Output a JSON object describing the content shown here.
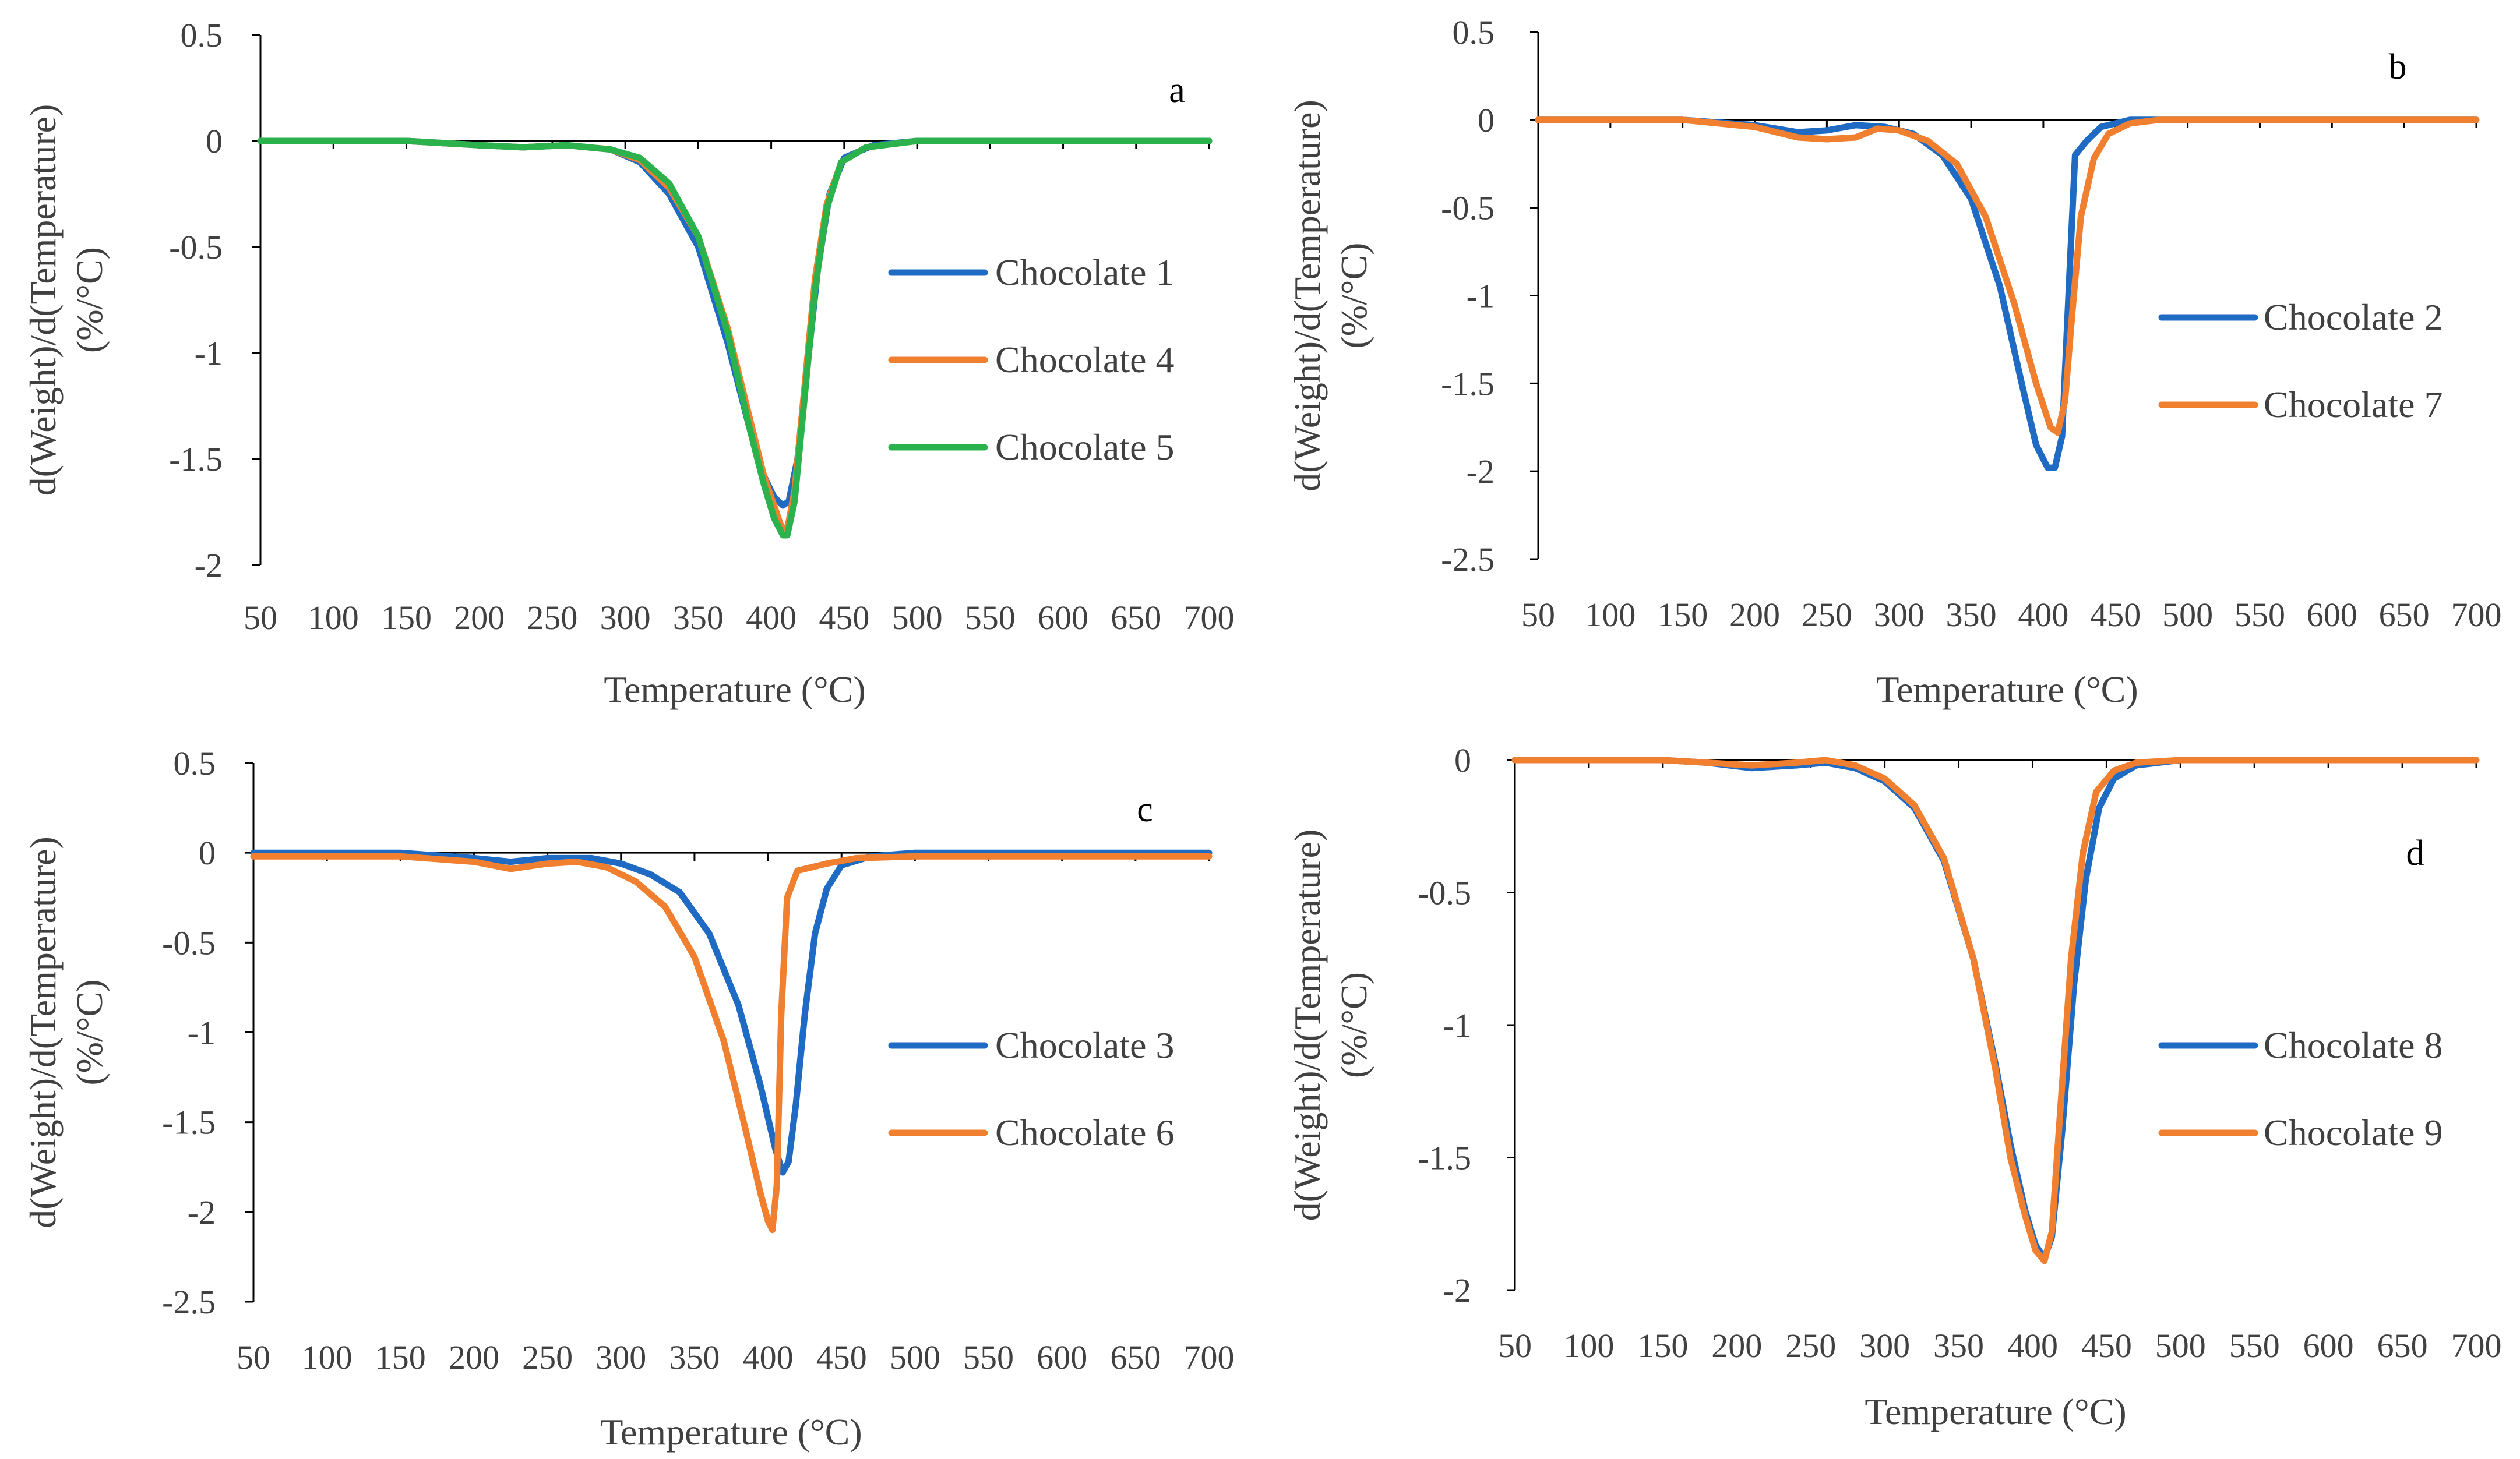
{
  "chart_data": [
    {
      "type": "line",
      "panel_label": "a",
      "xlabel": "Temperature (°C)",
      "ylabel_line1": "d(Weight)/d(Temperature)",
      "ylabel_line2": "(%/°C)",
      "xlim": [
        50,
        700
      ],
      "ylim": [
        -2,
        0.5
      ],
      "xticks": [
        50,
        100,
        150,
        200,
        250,
        300,
        350,
        400,
        450,
        500,
        550,
        600,
        650,
        700
      ],
      "yticks": [
        0.5,
        0,
        -0.5,
        -1,
        -1.5,
        -2
      ],
      "legend_position": "right",
      "series": [
        {
          "name": "Chocolate 1",
          "color": "#1F6BC4",
          "points": [
            [
              50,
              0
            ],
            [
              150,
              0
            ],
            [
              200,
              -0.02
            ],
            [
              230,
              -0.03
            ],
            [
              260,
              -0.02
            ],
            [
              290,
              -0.04
            ],
            [
              310,
              -0.1
            ],
            [
              330,
              -0.25
            ],
            [
              350,
              -0.5
            ],
            [
              370,
              -0.95
            ],
            [
              385,
              -1.35
            ],
            [
              395,
              -1.58
            ],
            [
              402,
              -1.68
            ],
            [
              408,
              -1.72
            ],
            [
              412,
              -1.7
            ],
            [
              418,
              -1.5
            ],
            [
              425,
              -1.05
            ],
            [
              432,
              -0.6
            ],
            [
              440,
              -0.25
            ],
            [
              450,
              -0.08
            ],
            [
              470,
              -0.02
            ],
            [
              500,
              0
            ],
            [
              700,
              0
            ]
          ]
        },
        {
          "name": "Chocolate 4",
          "color": "#F08030",
          "points": [
            [
              50,
              0
            ],
            [
              150,
              0
            ],
            [
              200,
              -0.02
            ],
            [
              230,
              -0.03
            ],
            [
              260,
              -0.02
            ],
            [
              290,
              -0.04
            ],
            [
              310,
              -0.09
            ],
            [
              330,
              -0.22
            ],
            [
              350,
              -0.45
            ],
            [
              370,
              -0.88
            ],
            [
              385,
              -1.3
            ],
            [
              395,
              -1.58
            ],
            [
              402,
              -1.72
            ],
            [
              407,
              -1.82
            ],
            [
              411,
              -1.83
            ],
            [
              416,
              -1.65
            ],
            [
              423,
              -1.15
            ],
            [
              430,
              -0.65
            ],
            [
              438,
              -0.3
            ],
            [
              448,
              -0.1
            ],
            [
              465,
              -0.03
            ],
            [
              500,
              0
            ],
            [
              700,
              0
            ]
          ]
        },
        {
          "name": "Chocolate 5",
          "color": "#2BB24C",
          "points": [
            [
              50,
              0
            ],
            [
              150,
              0
            ],
            [
              200,
              -0.02
            ],
            [
              230,
              -0.03
            ],
            [
              260,
              -0.02
            ],
            [
              290,
              -0.04
            ],
            [
              310,
              -0.08
            ],
            [
              330,
              -0.2
            ],
            [
              350,
              -0.45
            ],
            [
              370,
              -0.9
            ],
            [
              385,
              -1.35
            ],
            [
              395,
              -1.62
            ],
            [
              402,
              -1.78
            ],
            [
              408,
              -1.86
            ],
            [
              411,
              -1.86
            ],
            [
              416,
              -1.7
            ],
            [
              423,
              -1.2
            ],
            [
              430,
              -0.7
            ],
            [
              438,
              -0.32
            ],
            [
              448,
              -0.1
            ],
            [
              465,
              -0.03
            ],
            [
              500,
              0
            ],
            [
              700,
              0
            ]
          ]
        }
      ]
    },
    {
      "type": "line",
      "panel_label": "b",
      "xlabel": "Temperature (°C)",
      "ylabel_line1": "d(Weight)/d(Temperature)",
      "ylabel_line2": "(%/°C)",
      "xlim": [
        50,
        700
      ],
      "ylim": [
        -2.5,
        0.5
      ],
      "xticks": [
        50,
        100,
        150,
        200,
        250,
        300,
        350,
        400,
        450,
        500,
        550,
        600,
        650,
        700
      ],
      "yticks": [
        0.5,
        0,
        -0.5,
        -1,
        -1.5,
        -2,
        -2.5
      ],
      "legend_position": "right",
      "series": [
        {
          "name": "Chocolate 2",
          "color": "#1F6BC4",
          "points": [
            [
              50,
              0
            ],
            [
              150,
              0
            ],
            [
              200,
              -0.03
            ],
            [
              230,
              -0.07
            ],
            [
              250,
              -0.06
            ],
            [
              270,
              -0.03
            ],
            [
              290,
              -0.04
            ],
            [
              310,
              -0.08
            ],
            [
              330,
              -0.2
            ],
            [
              350,
              -0.45
            ],
            [
              370,
              -0.95
            ],
            [
              385,
              -1.5
            ],
            [
              395,
              -1.85
            ],
            [
              403,
              -1.98
            ],
            [
              408,
              -1.98
            ],
            [
              413,
              -1.8
            ],
            [
              418,
              -0.9
            ],
            [
              422,
              -0.2
            ],
            [
              430,
              -0.12
            ],
            [
              440,
              -0.04
            ],
            [
              460,
              0
            ],
            [
              700,
              0
            ]
          ]
        },
        {
          "name": "Chocolate 7",
          "color": "#F08030",
          "points": [
            [
              50,
              0
            ],
            [
              150,
              0
            ],
            [
              200,
              -0.04
            ],
            [
              230,
              -0.1
            ],
            [
              250,
              -0.11
            ],
            [
              270,
              -0.1
            ],
            [
              285,
              -0.05
            ],
            [
              300,
              -0.06
            ],
            [
              320,
              -0.12
            ],
            [
              340,
              -0.25
            ],
            [
              360,
              -0.55
            ],
            [
              380,
              -1.05
            ],
            [
              395,
              -1.5
            ],
            [
              405,
              -1.75
            ],
            [
              410,
              -1.78
            ],
            [
              415,
              -1.6
            ],
            [
              420,
              -1.1
            ],
            [
              426,
              -0.55
            ],
            [
              435,
              -0.22
            ],
            [
              445,
              -0.08
            ],
            [
              460,
              -0.02
            ],
            [
              480,
              0
            ],
            [
              700,
              0
            ]
          ]
        }
      ]
    },
    {
      "type": "line",
      "panel_label": "c",
      "xlabel": "Temperature (°C)",
      "ylabel_line1": "d(Weight)/d(Temperature)",
      "ylabel_line2": "(%/°C)",
      "xlim": [
        50,
        700
      ],
      "ylim": [
        -2.5,
        0.5
      ],
      "xticks": [
        50,
        100,
        150,
        200,
        250,
        300,
        350,
        400,
        450,
        500,
        550,
        600,
        650,
        700
      ],
      "yticks": [
        0.5,
        0,
        -0.5,
        -1,
        -1.5,
        -2,
        -2.5
      ],
      "legend_position": "right",
      "series": [
        {
          "name": "Chocolate 3",
          "color": "#1F6BC4",
          "points": [
            [
              50,
              0
            ],
            [
              150,
              0
            ],
            [
              200,
              -0.03
            ],
            [
              225,
              -0.05
            ],
            [
              250,
              -0.03
            ],
            [
              280,
              -0.03
            ],
            [
              300,
              -0.06
            ],
            [
              320,
              -0.12
            ],
            [
              340,
              -0.22
            ],
            [
              360,
              -0.45
            ],
            [
              380,
              -0.85
            ],
            [
              395,
              -1.3
            ],
            [
              405,
              -1.65
            ],
            [
              410,
              -1.78
            ],
            [
              414,
              -1.72
            ],
            [
              419,
              -1.4
            ],
            [
              425,
              -0.9
            ],
            [
              432,
              -0.45
            ],
            [
              440,
              -0.2
            ],
            [
              450,
              -0.07
            ],
            [
              470,
              -0.02
            ],
            [
              500,
              0
            ],
            [
              700,
              0
            ]
          ]
        },
        {
          "name": "Chocolate 6",
          "color": "#F08030",
          "points": [
            [
              50,
              -0.02
            ],
            [
              150,
              -0.02
            ],
            [
              200,
              -0.05
            ],
            [
              225,
              -0.09
            ],
            [
              250,
              -0.06
            ],
            [
              270,
              -0.05
            ],
            [
              290,
              -0.08
            ],
            [
              310,
              -0.16
            ],
            [
              330,
              -0.3
            ],
            [
              350,
              -0.58
            ],
            [
              370,
              -1.05
            ],
            [
              385,
              -1.55
            ],
            [
              395,
              -1.9
            ],
            [
              400,
              -2.05
            ],
            [
              403,
              -2.1
            ],
            [
              406,
              -1.85
            ],
            [
              409,
              -0.9
            ],
            [
              413,
              -0.25
            ],
            [
              420,
              -0.1
            ],
            [
              440,
              -0.06
            ],
            [
              460,
              -0.03
            ],
            [
              500,
              -0.02
            ],
            [
              700,
              -0.02
            ]
          ]
        }
      ]
    },
    {
      "type": "line",
      "panel_label": "d",
      "xlabel": "Temperature (°C)",
      "ylabel_line1": "d(Weight)/d(Temperature)",
      "ylabel_line2": "(%/°C)",
      "xlim": [
        50,
        700
      ],
      "ylim": [
        -2,
        0
      ],
      "xticks": [
        50,
        100,
        150,
        200,
        250,
        300,
        350,
        400,
        450,
        500,
        550,
        600,
        650,
        700
      ],
      "yticks": [
        0,
        -0.5,
        -1,
        -1.5,
        -2
      ],
      "legend_position": "right",
      "series": [
        {
          "name": "Chocolate 8",
          "color": "#1F6BC4",
          "points": [
            [
              50,
              0
            ],
            [
              150,
              0
            ],
            [
              180,
              -0.01
            ],
            [
              210,
              -0.03
            ],
            [
              240,
              -0.02
            ],
            [
              260,
              -0.01
            ],
            [
              280,
              -0.03
            ],
            [
              300,
              -0.08
            ],
            [
              320,
              -0.18
            ],
            [
              340,
              -0.38
            ],
            [
              360,
              -0.75
            ],
            [
              375,
              -1.15
            ],
            [
              385,
              -1.45
            ],
            [
              395,
              -1.7
            ],
            [
              402,
              -1.83
            ],
            [
              408,
              -1.88
            ],
            [
              413,
              -1.8
            ],
            [
              420,
              -1.4
            ],
            [
              428,
              -0.85
            ],
            [
              436,
              -0.45
            ],
            [
              445,
              -0.18
            ],
            [
              455,
              -0.07
            ],
            [
              470,
              -0.02
            ],
            [
              500,
              0
            ],
            [
              700,
              0
            ]
          ]
        },
        {
          "name": "Chocolate 9",
          "color": "#F08030",
          "points": [
            [
              50,
              0
            ],
            [
              150,
              0
            ],
            [
              180,
              -0.01
            ],
            [
              210,
              -0.02
            ],
            [
              240,
              -0.01
            ],
            [
              260,
              0
            ],
            [
              280,
              -0.02
            ],
            [
              300,
              -0.07
            ],
            [
              320,
              -0.17
            ],
            [
              340,
              -0.37
            ],
            [
              360,
              -0.75
            ],
            [
              375,
              -1.17
            ],
            [
              385,
              -1.5
            ],
            [
              395,
              -1.72
            ],
            [
              402,
              -1.85
            ],
            [
              408,
              -1.89
            ],
            [
              413,
              -1.78
            ],
            [
              419,
              -1.3
            ],
            [
              426,
              -0.75
            ],
            [
              434,
              -0.35
            ],
            [
              443,
              -0.12
            ],
            [
              455,
              -0.04
            ],
            [
              470,
              -0.01
            ],
            [
              500,
              0
            ],
            [
              700,
              0
            ]
          ]
        }
      ]
    }
  ]
}
